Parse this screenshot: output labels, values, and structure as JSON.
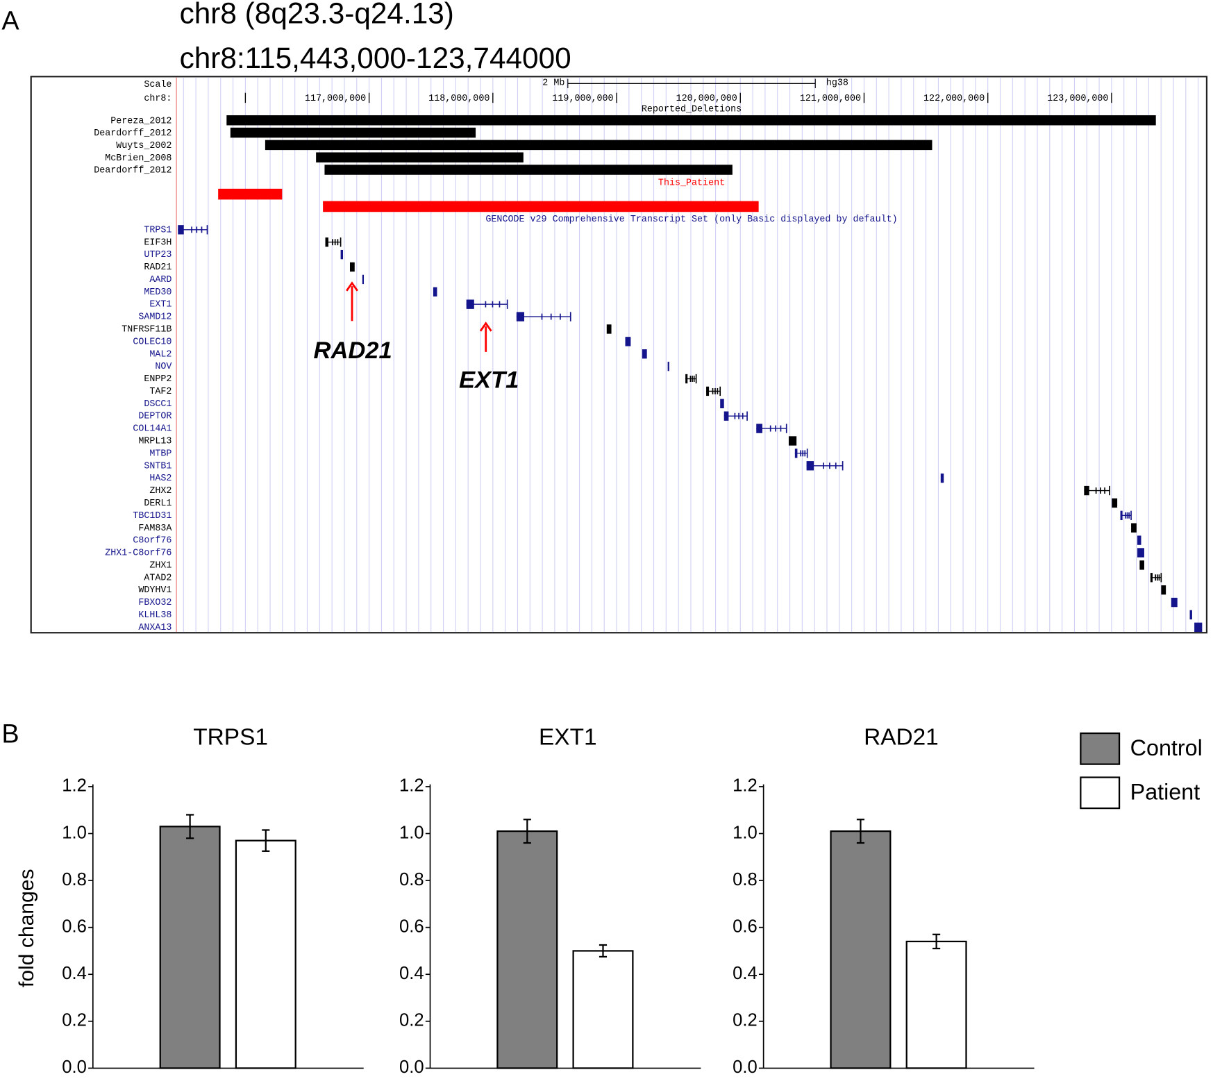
{
  "panel_a": {
    "label": "A",
    "title": "chr8 (8q23.3-q24.13)",
    "subtitle": "chr8:115,443,000-123,744000",
    "range": [
      115443000,
      123744000
    ],
    "scale_label": "Scale",
    "scale_bar": {
      "label": "2 Mb",
      "length": 2000000
    },
    "assembly": "hg38",
    "chrom_label": "chr8:",
    "ruler_ticks": [
      {
        "value": 116000000,
        "label": null
      },
      {
        "value": 117000000,
        "label": "117,000,000"
      },
      {
        "value": 118000000,
        "label": "118,000,000"
      },
      {
        "value": 119000000,
        "label": "119,000,000"
      },
      {
        "value": 120000000,
        "label": "120,000,000"
      },
      {
        "value": 121000000,
        "label": "121,000,000"
      },
      {
        "value": 122000000,
        "label": "122,000,000"
      },
      {
        "value": 123000000,
        "label": "123,000,000"
      }
    ],
    "deletions": {
      "title": "Reported_Deletions",
      "color": "#000000",
      "items": [
        {
          "name": "Pereza_2012",
          "start": 115848000,
          "end": 123358000
        },
        {
          "name": "Deardorff_2012",
          "start": 115879000,
          "end": 117861000
        },
        {
          "name": "Wuyts_2002",
          "start": 116160000,
          "end": 121550000
        },
        {
          "name": "McBrien_2008",
          "start": 116571000,
          "end": 118247000
        },
        {
          "name": "Deardorff_2012",
          "start": 116640000,
          "end": 119936000
        }
      ]
    },
    "patient": {
      "name": "This_Patient",
      "color": "#ff0000",
      "segments": [
        {
          "start": 115780000,
          "end": 116297000
        },
        {
          "start": 116627000,
          "end": 120148000
        }
      ]
    },
    "genes": {
      "title": "GENCODE v29 Comprehensive Transcript Set (only Basic displayed by default)",
      "items": [
        {
          "name": "TRPS1",
          "color": "#14148c",
          "start": 115455000,
          "end": 115692000
        },
        {
          "name": "EIF3H",
          "color": "#000000",
          "start": 116646000,
          "end": 116770000
        },
        {
          "name": "UTP23",
          "color": "#14148c",
          "start": 116770000,
          "end": 116789000
        },
        {
          "name": "RAD21",
          "color": "#000000",
          "start": 116845000,
          "end": 116883000
        },
        {
          "name": "AARD",
          "color": "#14148c",
          "start": 116945000,
          "end": 116957000
        },
        {
          "name": "MED30",
          "color": "#14148c",
          "start": 117518000,
          "end": 117549000
        },
        {
          "name": "EXT1",
          "color": "#14148c",
          "start": 117786000,
          "end": 118117000
        },
        {
          "name": "SAMD12",
          "color": "#14148c",
          "start": 118191000,
          "end": 118628000
        },
        {
          "name": "TNFRSF11B",
          "color": "#000000",
          "start": 118920000,
          "end": 118958000
        },
        {
          "name": "COLEC10",
          "color": "#14148c",
          "start": 119070000,
          "end": 119114000
        },
        {
          "name": "MAL2",
          "color": "#14148c",
          "start": 119207000,
          "end": 119245000
        },
        {
          "name": "NOV",
          "color": "#14148c",
          "start": 119413000,
          "end": 119425000
        },
        {
          "name": "ENPP2",
          "color": "#000000",
          "start": 119556000,
          "end": 119643000
        },
        {
          "name": "TAF2",
          "color": "#000000",
          "start": 119724000,
          "end": 119837000
        },
        {
          "name": "DSCC1",
          "color": "#14148c",
          "start": 119837000,
          "end": 119868000
        },
        {
          "name": "DEPTOR",
          "color": "#14148c",
          "start": 119868000,
          "end": 120055000
        },
        {
          "name": "COL14A1",
          "color": "#14148c",
          "start": 120129000,
          "end": 120373000
        },
        {
          "name": "MRPL13",
          "color": "#000000",
          "start": 120391000,
          "end": 120454000
        },
        {
          "name": "MTBP",
          "color": "#14148c",
          "start": 120441000,
          "end": 120541000
        },
        {
          "name": "SNTB1",
          "color": "#14148c",
          "start": 120535000,
          "end": 120827000
        },
        {
          "name": "HAS2",
          "color": "#14148c",
          "start": 121619000,
          "end": 121644000
        },
        {
          "name": "ZHX2",
          "color": "#000000",
          "start": 122778000,
          "end": 122984000
        },
        {
          "name": "DERL1",
          "color": "#000000",
          "start": 123002000,
          "end": 123046000
        },
        {
          "name": "TBC1D31",
          "color": "#14148c",
          "start": 123071000,
          "end": 123158000
        },
        {
          "name": "FAM83A",
          "color": "#000000",
          "start": 123158000,
          "end": 123202000
        },
        {
          "name": "C8orf76",
          "color": "#14148c",
          "start": 123208000,
          "end": 123239000
        },
        {
          "name": "ZHX1-C8orf76",
          "color": "#14148c",
          "start": 123208000,
          "end": 123264000
        },
        {
          "name": "ZHX1",
          "color": "#000000",
          "start": 123227000,
          "end": 123264000
        },
        {
          "name": "ATAD2",
          "color": "#000000",
          "start": 123314000,
          "end": 123401000
        },
        {
          "name": "WDYHV1",
          "color": "#000000",
          "start": 123401000,
          "end": 123439000
        },
        {
          "name": "FBXO32",
          "color": "#14148c",
          "start": 123482000,
          "end": 123532000
        },
        {
          "name": "KLHL38",
          "color": "#14148c",
          "start": 123632000,
          "end": 123651000
        },
        {
          "name": "ANXA13",
          "color": "#14148c",
          "start": 123669000,
          "end": 123732000
        }
      ]
    },
    "annotations": [
      {
        "label": "RAD21",
        "arrow_color": "#ff0000"
      },
      {
        "label": "EXT1",
        "arrow_color": "#ff0000"
      }
    ]
  },
  "panel_b": {
    "label": "B"
  },
  "chart_data": [
    {
      "type": "bar",
      "title": "TRPS1",
      "y_label": "fold changes",
      "ylim": [
        0,
        1.2
      ],
      "yticks": [
        {
          "value": 0,
          "label": "0.0"
        },
        0.2,
        0.4,
        0.6,
        0.8,
        {
          "value": 1,
          "label": "1.0"
        },
        1.2
      ],
      "series": [
        {
          "name": "Control",
          "color": "#808080",
          "values": [
            1.03
          ],
          "errors": [
            0.05
          ]
        },
        {
          "name": "Patient",
          "color": "#ffffff",
          "values": [
            0.97
          ],
          "errors": [
            0.045
          ]
        }
      ]
    },
    {
      "type": "bar",
      "title": "EXT1",
      "ylim": [
        0,
        1.2
      ],
      "yticks": [
        {
          "value": 0,
          "label": "0.0"
        },
        0.2,
        0.4,
        0.6,
        0.8,
        {
          "value": 1,
          "label": "1.0"
        },
        1.2
      ],
      "series": [
        {
          "name": "Control",
          "color": "#808080",
          "values": [
            1.01
          ],
          "errors": [
            0.05
          ]
        },
        {
          "name": "Patient",
          "color": "#ffffff",
          "values": [
            0.5
          ],
          "errors": [
            0.025
          ]
        }
      ]
    },
    {
      "type": "bar",
      "title": "RAD21",
      "ylim": [
        0,
        1.2
      ],
      "yticks": [
        {
          "value": 0,
          "label": "0.0"
        },
        0.2,
        0.4,
        0.6,
        0.8,
        {
          "value": 1,
          "label": "1.0"
        },
        1.2
      ],
      "series": [
        {
          "name": "Control",
          "color": "#808080",
          "values": [
            1.01
          ],
          "errors": [
            0.05
          ]
        },
        {
          "name": "Patient",
          "color": "#ffffff",
          "values": [
            0.54
          ],
          "errors": [
            0.03
          ]
        }
      ]
    }
  ]
}
